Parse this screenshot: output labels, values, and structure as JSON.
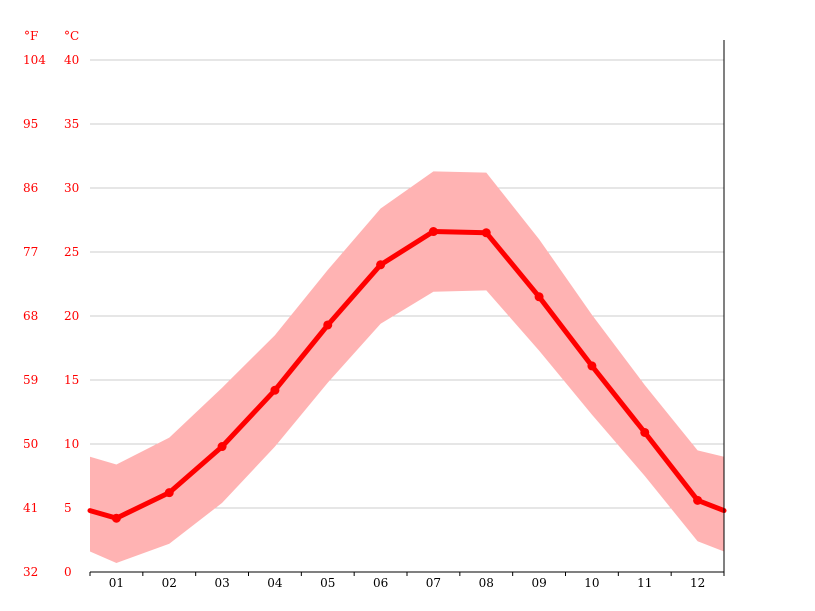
{
  "chart_data": {
    "type": "line",
    "title": "",
    "xlabel": "",
    "ylabel": "",
    "y_unit_left": "°F",
    "y_unit_right": "°C",
    "categories": [
      "01",
      "02",
      "03",
      "04",
      "05",
      "06",
      "07",
      "08",
      "09",
      "10",
      "11",
      "12"
    ],
    "y_ticks_c": [
      "0",
      "5",
      "10",
      "15",
      "20",
      "25",
      "30",
      "35",
      "40"
    ],
    "y_ticks_f": [
      "32",
      "41",
      "50",
      "59",
      "68",
      "77",
      "86",
      "95",
      "104"
    ],
    "ylim": [
      0,
      40
    ],
    "grid": true,
    "series": [
      {
        "role": "mean",
        "values": [
          4.2,
          6.2,
          9.8,
          14.2,
          19.3,
          24.0,
          26.6,
          26.5,
          21.5,
          16.1,
          10.9,
          5.6
        ],
        "edge_start": 4.8,
        "edge_end": 4.8,
        "color": "#ff0000"
      },
      {
        "role": "range",
        "low": [
          0.7,
          2.2,
          5.4,
          9.8,
          14.8,
          19.4,
          21.9,
          22.0,
          17.3,
          12.3,
          7.5,
          2.4
        ],
        "high": [
          8.4,
          10.5,
          14.4,
          18.5,
          23.6,
          28.4,
          31.3,
          31.2,
          26.0,
          20.1,
          14.6,
          9.5
        ],
        "edge_start_low": 1.6,
        "edge_start_high": 9.0,
        "edge_end_low": 1.6,
        "edge_end_high": 9.0,
        "color": "#ffb3b3"
      }
    ]
  }
}
